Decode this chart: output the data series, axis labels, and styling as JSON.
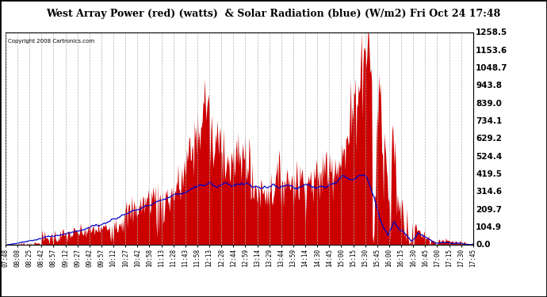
{
  "title": "West Array Power (red) (watts)  & Solar Radiation (blue) (W/m2) Fri Oct 24 17:48",
  "copyright": "Copyright 2008 Cartronics.com",
  "background_color": "#ffffff",
  "plot_bg_color": "#ffffff",
  "grid_color": "#b0b0b0",
  "fill_color_red": "#cc0000",
  "line_color_blue": "#0000cc",
  "y_ticks": [
    0.0,
    104.9,
    209.7,
    314.6,
    419.5,
    524.4,
    629.2,
    734.1,
    839.0,
    943.8,
    1048.7,
    1153.6,
    1258.5
  ],
  "y_max": 1258.5,
  "y_min": 0.0,
  "x_labels": [
    "07:48",
    "08:08",
    "08:25",
    "08:42",
    "08:57",
    "09:12",
    "09:27",
    "09:42",
    "09:57",
    "10:12",
    "10:27",
    "10:42",
    "10:58",
    "11:13",
    "11:28",
    "11:43",
    "11:58",
    "12:13",
    "12:28",
    "12:44",
    "12:59",
    "13:14",
    "13:29",
    "13:44",
    "13:59",
    "14:14",
    "14:30",
    "14:45",
    "15:00",
    "15:15",
    "15:30",
    "15:45",
    "16:00",
    "16:15",
    "16:30",
    "16:45",
    "17:00",
    "17:15",
    "17:30",
    "17:45"
  ]
}
